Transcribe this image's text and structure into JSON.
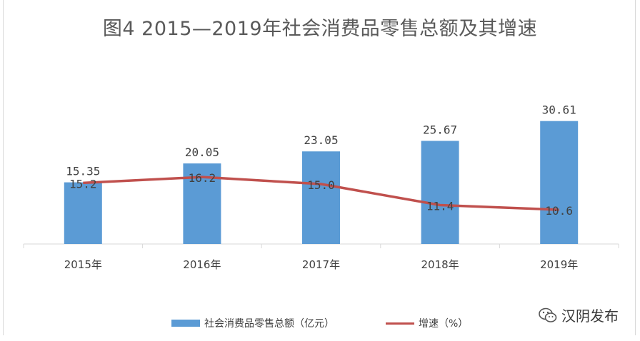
{
  "title": "图4  2015—2019年社会消费品零售总额及其增速",
  "watermark": {
    "text": "汉阴发布",
    "icon": "wechat-icon"
  },
  "colors": {
    "bar": "#5b9bd5",
    "line": "#c0504d",
    "axis": "#d9d9d9",
    "label": "#404040"
  },
  "chart_data": {
    "type": "bar",
    "categories": [
      "2015年",
      "2016年",
      "2017年",
      "2018年",
      "2019年"
    ],
    "series": [
      {
        "name": "社会消费品零售总额（亿元）",
        "type": "bar",
        "values": [
          15.35,
          20.05,
          23.05,
          25.67,
          30.61
        ],
        "labels": [
          "15.35",
          "20.05",
          "23.05",
          "25.67",
          "30.61"
        ]
      },
      {
        "name": "增速（%）",
        "type": "line",
        "values": [
          15.2,
          16.2,
          15.0,
          11.4,
          10.6
        ],
        "labels": [
          "15.2",
          "16.2",
          "15.0",
          "11.4",
          "10.6"
        ]
      }
    ],
    "grid": false,
    "legend": "bottom"
  }
}
